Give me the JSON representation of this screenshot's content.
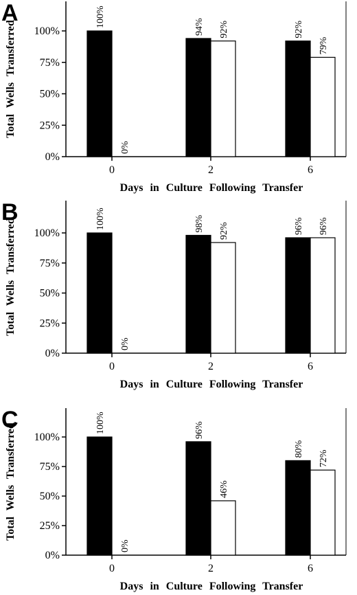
{
  "chart_data": [
    {
      "type": "bar",
      "panel": "A",
      "categories": [
        "0",
        "2",
        "6"
      ],
      "series": [
        {
          "fill": "#000000",
          "values": [
            100,
            94,
            92
          ],
          "labels": [
            "100%",
            "94%",
            "92%"
          ]
        },
        {
          "fill": "#ffffff",
          "values": [
            0,
            92,
            79
          ],
          "labels": [
            "0%",
            "92%",
            "79%"
          ]
        }
      ],
      "yticks": [
        "0%",
        "25%",
        "50%",
        "75%",
        "100%"
      ],
      "ylim": [
        0,
        100
      ],
      "xlabel": "Days in Culture Following Transfer",
      "ylabel": "Total Wells Transferred",
      "grid": false
    },
    {
      "type": "bar",
      "panel": "B",
      "categories": [
        "0",
        "2",
        "6"
      ],
      "series": [
        {
          "fill": "#000000",
          "values": [
            100,
            98,
            96
          ],
          "labels": [
            "100%",
            "98%",
            "96%"
          ]
        },
        {
          "fill": "#ffffff",
          "values": [
            0,
            92,
            96
          ],
          "labels": [
            "0%",
            "92%",
            "96%"
          ]
        }
      ],
      "yticks": [
        "0%",
        "25%",
        "50%",
        "75%",
        "100%"
      ],
      "ylim": [
        0,
        100
      ],
      "xlabel": "Days in Culture Following Transfer",
      "ylabel": "Total Wells Transferred",
      "grid": false
    },
    {
      "type": "bar",
      "panel": "C",
      "categories": [
        "0",
        "2",
        "6"
      ],
      "series": [
        {
          "fill": "#000000",
          "values": [
            100,
            96,
            80
          ],
          "labels": [
            "100%",
            "96%",
            "80%"
          ]
        },
        {
          "fill": "#ffffff",
          "values": [
            0,
            46,
            72
          ],
          "labels": [
            "0%",
            "46%",
            "72%"
          ]
        }
      ],
      "yticks": [
        "0%",
        "25%",
        "50%",
        "75%",
        "100%"
      ],
      "ylim": [
        0,
        100
      ],
      "xlabel": "Days in Culture Following Transfer",
      "ylabel": "Total Wells Transferred",
      "grid": false
    }
  ]
}
